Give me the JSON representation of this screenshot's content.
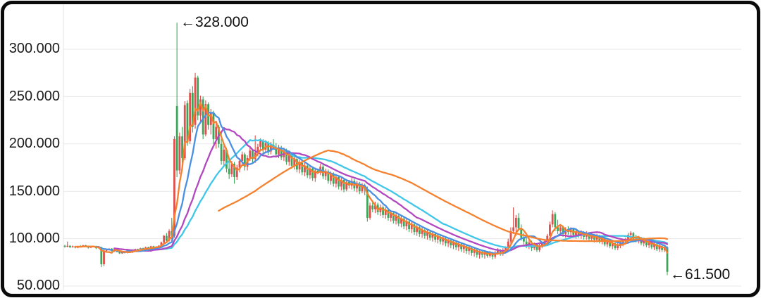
{
  "chart_data": {
    "type": "candlestick",
    "title": "",
    "convention": "red=up, green=down",
    "up_color": "#e04f4d",
    "down_color": "#3fa55b",
    "grid_color": "#e8e8e8",
    "axis_line_color": "#e3e3e3",
    "label_color": "#1b1b1b",
    "border_color": "#0b0b0b",
    "background": "#ffffff",
    "x_axis": {
      "visible": false
    },
    "y_axis": {
      "tick_values": [
        300,
        250,
        200,
        150,
        100,
        50
      ],
      "tick_labels": [
        "300.000",
        "250.000",
        "200.000",
        "150.000",
        "100.000",
        "50.000"
      ],
      "ylim": [
        45,
        345
      ],
      "grid": true
    },
    "annotations": [
      {
        "text": "←328.000",
        "value": 328.0,
        "candle_index": 43,
        "anchor": "high"
      },
      {
        "text": "←61.500",
        "value": 61.5,
        "candle_index": 231,
        "anchor": "low"
      }
    ],
    "ma_lines": [
      {
        "name": "MA30",
        "period": 30,
        "color": "#3fc6e8"
      },
      {
        "name": "MA20",
        "period": 20,
        "color": "#b148c0"
      },
      {
        "name": "MA10",
        "period": 10,
        "color": "#4a90e2"
      },
      {
        "name": "MA5",
        "period": 5,
        "color": "#f5812f"
      },
      {
        "name": "MA60",
        "period": 60,
        "color": "#f5812f"
      }
    ],
    "candles": [
      [
        92.5,
        93.5,
        90.5,
        91.5
      ],
      [
        91.5,
        97,
        91,
        92.5
      ],
      [
        92.5,
        93,
        90.2,
        91
      ],
      [
        91,
        92.8,
        90.5,
        92
      ],
      [
        92,
        92.5,
        89.8,
        90.5
      ],
      [
        90.5,
        92.5,
        90,
        92
      ],
      [
        92,
        93.2,
        91,
        91.5
      ],
      [
        91.5,
        93.5,
        91,
        93
      ],
      [
        93,
        93.5,
        91.5,
        92
      ],
      [
        92,
        92.5,
        89.5,
        90.5
      ],
      [
        90.5,
        92,
        90,
        91.5
      ],
      [
        91.5,
        92.3,
        90.8,
        92
      ],
      [
        92,
        92.5,
        89,
        90
      ],
      [
        90,
        92,
        89.5,
        91.5
      ],
      [
        91,
        91.5,
        70,
        73
      ],
      [
        73,
        89,
        71,
        87.5
      ],
      [
        87.5,
        89,
        86.5,
        88
      ],
      [
        88,
        89.8,
        87.5,
        89.5
      ],
      [
        89.5,
        90,
        86.5,
        87
      ],
      [
        87,
        89,
        86,
        88.5
      ],
      [
        88.5,
        89,
        85.5,
        86
      ],
      [
        86,
        87,
        84,
        84.5
      ],
      [
        84.5,
        87,
        84,
        86.5
      ],
      [
        86.5,
        87,
        84.5,
        85
      ],
      [
        85,
        87.5,
        84.5,
        87
      ],
      [
        87,
        87.5,
        85,
        85.5
      ],
      [
        85.5,
        88.5,
        85,
        88
      ],
      [
        88,
        89.5,
        87,
        89
      ],
      [
        89,
        89.5,
        87,
        87.5
      ],
      [
        87.5,
        90.5,
        87,
        90
      ],
      [
        90,
        90.5,
        88,
        88.5
      ],
      [
        88.5,
        91.5,
        88,
        91
      ],
      [
        91,
        91.5,
        89,
        89.5
      ],
      [
        89.5,
        92.5,
        89,
        92
      ],
      [
        92,
        92.5,
        90,
        90.5
      ],
      [
        90.5,
        92,
        90,
        91.5
      ],
      [
        91.5,
        93,
        91,
        92.5
      ],
      [
        92.5,
        97,
        91.5,
        96
      ],
      [
        96,
        104,
        95,
        103
      ],
      [
        103,
        106,
        96,
        98
      ],
      [
        98,
        110,
        97,
        108
      ],
      [
        108,
        122,
        98,
        103
      ],
      [
        103,
        208,
        101,
        205
      ],
      [
        240,
        328,
        165,
        172
      ],
      [
        172,
        212,
        168,
        208
      ],
      [
        208,
        218,
        180,
        185
      ],
      [
        185,
        245,
        183,
        241
      ],
      [
        243,
        246,
        198,
        203
      ],
      [
        203,
        258,
        200,
        254
      ],
      [
        254,
        261,
        212,
        218
      ],
      [
        220,
        275,
        216,
        270
      ],
      [
        270,
        272,
        225,
        230
      ],
      [
        230,
        251,
        222,
        247
      ],
      [
        247,
        250,
        205,
        210
      ],
      [
        210,
        246,
        208,
        242
      ],
      [
        242,
        244,
        215,
        220
      ],
      [
        220,
        237,
        210,
        233
      ],
      [
        233,
        235,
        200,
        205
      ],
      [
        205,
        222,
        195,
        218
      ],
      [
        218,
        220,
        196,
        200
      ],
      [
        200,
        212,
        178,
        182
      ],
      [
        182,
        198,
        176,
        194
      ],
      [
        194,
        196,
        170,
        174
      ],
      [
        174,
        186,
        163,
        168
      ],
      [
        168,
        182,
        165,
        179
      ],
      [
        179,
        181,
        158,
        165
      ],
      [
        165,
        178,
        162,
        175
      ],
      [
        175,
        185,
        170,
        182
      ],
      [
        182,
        192,
        178,
        189
      ],
      [
        189,
        191,
        172,
        176
      ],
      [
        176,
        188,
        172,
        185
      ],
      [
        185,
        196,
        182,
        193
      ],
      [
        193,
        195,
        180,
        184
      ],
      [
        184,
        209,
        180,
        191
      ],
      [
        191,
        200,
        187,
        197
      ],
      [
        197,
        206,
        192,
        203
      ],
      [
        203,
        205,
        190,
        194
      ],
      [
        194,
        204,
        190,
        201
      ],
      [
        201,
        203,
        188,
        192
      ],
      [
        192,
        202,
        189,
        199
      ],
      [
        199,
        205,
        194,
        196
      ],
      [
        196,
        201,
        186,
        189
      ],
      [
        189,
        199,
        185,
        196
      ],
      [
        196,
        198,
        183,
        186
      ],
      [
        186,
        196,
        182,
        193
      ],
      [
        193,
        195,
        178,
        181
      ],
      [
        181,
        191,
        177,
        188
      ],
      [
        188,
        190,
        174,
        177
      ],
      [
        177,
        187,
        173,
        184
      ],
      [
        184,
        186,
        170,
        173
      ],
      [
        173,
        183,
        169,
        180
      ],
      [
        180,
        182,
        167,
        170
      ],
      [
        170,
        180,
        166,
        177
      ],
      [
        177,
        179,
        164,
        167
      ],
      [
        167,
        177,
        163,
        174
      ],
      [
        174,
        176,
        161,
        164
      ],
      [
        164,
        175,
        160,
        172
      ],
      [
        172,
        174,
        168,
        170
      ],
      [
        170,
        179,
        167,
        176
      ],
      [
        176,
        178,
        163,
        166
      ],
      [
        166,
        174,
        162,
        171
      ],
      [
        171,
        173,
        158,
        161
      ],
      [
        161,
        171,
        157,
        168
      ],
      [
        168,
        170,
        155,
        158
      ],
      [
        158,
        168,
        154,
        165
      ],
      [
        165,
        167,
        152,
        155
      ],
      [
        155,
        165,
        151,
        162
      ],
      [
        162,
        164,
        149,
        152
      ],
      [
        152,
        163,
        150,
        160
      ],
      [
        160,
        162,
        153,
        156
      ],
      [
        156,
        164,
        152,
        161
      ],
      [
        161,
        163,
        150,
        153
      ],
      [
        153,
        161,
        149,
        158
      ],
      [
        158,
        160,
        147,
        150
      ],
      [
        150,
        159,
        148,
        156
      ],
      [
        156,
        158,
        146,
        152
      ],
      [
        152,
        155,
        118,
        122
      ],
      [
        122,
        138,
        120,
        135
      ],
      [
        135,
        140,
        128,
        131
      ],
      [
        131,
        139,
        127,
        136
      ],
      [
        136,
        138,
        125,
        128
      ],
      [
        128,
        136,
        124,
        133
      ],
      [
        133,
        135,
        122,
        125
      ],
      [
        125,
        133,
        121,
        130
      ],
      [
        130,
        132,
        119,
        122
      ],
      [
        122,
        130,
        118,
        127
      ],
      [
        127,
        129,
        116,
        119
      ],
      [
        119,
        127,
        115,
        124
      ],
      [
        124,
        126,
        113,
        116
      ],
      [
        116,
        124,
        112,
        121
      ],
      [
        121,
        123,
        110,
        113
      ],
      [
        113,
        121,
        109,
        118
      ],
      [
        118,
        120,
        107,
        110
      ],
      [
        110,
        118,
        106,
        115
      ],
      [
        115,
        117,
        104,
        107
      ],
      [
        107,
        115,
        103,
        112
      ],
      [
        112,
        114,
        102,
        105
      ],
      [
        105,
        112,
        101,
        109
      ],
      [
        109,
        111,
        100,
        103
      ],
      [
        103,
        110,
        99,
        107
      ],
      [
        107,
        109,
        98,
        101
      ],
      [
        101,
        108,
        97,
        105
      ],
      [
        105,
        107,
        96,
        99
      ],
      [
        99,
        105,
        95,
        102
      ],
      [
        102,
        104,
        94,
        97
      ],
      [
        97,
        103,
        93,
        100
      ],
      [
        100,
        102,
        92,
        95
      ],
      [
        95,
        101,
        91,
        98
      ],
      [
        98,
        100,
        90,
        93
      ],
      [
        93,
        99,
        89,
        96
      ],
      [
        96,
        98,
        88,
        91
      ],
      [
        91,
        97,
        87,
        94
      ],
      [
        94,
        96,
        86,
        89
      ],
      [
        89,
        95,
        85,
        92
      ],
      [
        92,
        94,
        84,
        87
      ],
      [
        87,
        93,
        83,
        90
      ],
      [
        90,
        92,
        82,
        85
      ],
      [
        85,
        91,
        81,
        88
      ],
      [
        88,
        90,
        80,
        83
      ],
      [
        83,
        89,
        79,
        86
      ],
      [
        86,
        88,
        80,
        83
      ],
      [
        83,
        88,
        79,
        86
      ],
      [
        86,
        87,
        80,
        82
      ],
      [
        82,
        87,
        80,
        85
      ],
      [
        85,
        86,
        78,
        81
      ],
      [
        81,
        87,
        79,
        85
      ],
      [
        85,
        90,
        83,
        88
      ],
      [
        88,
        89,
        82,
        84
      ],
      [
        84,
        90,
        82,
        88
      ],
      [
        88,
        92,
        85,
        90
      ],
      [
        90,
        100,
        88,
        97
      ],
      [
        97,
        112,
        95,
        108
      ],
      [
        108,
        133,
        105,
        112
      ],
      [
        112,
        125,
        103,
        122
      ],
      [
        122,
        127,
        108,
        111
      ],
      [
        111,
        115,
        98,
        101
      ],
      [
        101,
        106,
        94,
        97
      ],
      [
        97,
        102,
        90,
        93
      ],
      [
        93,
        99,
        89,
        96
      ],
      [
        96,
        98,
        87,
        90
      ],
      [
        90,
        96,
        88,
        94
      ],
      [
        94,
        95,
        86,
        88
      ],
      [
        88,
        95,
        86,
        93
      ],
      [
        93,
        97,
        90,
        95
      ],
      [
        95,
        99,
        92,
        97
      ],
      [
        97,
        105,
        95,
        103
      ],
      [
        103,
        118,
        101,
        115
      ],
      [
        115,
        130,
        112,
        126
      ],
      [
        126,
        128,
        108,
        112
      ],
      [
        112,
        120,
        105,
        108
      ],
      [
        108,
        115,
        103,
        112
      ],
      [
        112,
        114,
        102,
        105
      ],
      [
        105,
        112,
        101,
        109
      ],
      [
        109,
        113,
        104,
        107
      ],
      [
        107,
        112,
        103,
        110
      ],
      [
        110,
        111,
        102,
        104
      ],
      [
        104,
        110,
        100,
        107
      ],
      [
        107,
        109,
        101,
        103
      ],
      [
        103,
        109,
        100,
        106
      ],
      [
        106,
        108,
        99,
        102
      ],
      [
        102,
        108,
        99,
        105
      ],
      [
        105,
        107,
        98,
        100
      ],
      [
        100,
        106,
        97,
        103
      ],
      [
        103,
        105,
        96,
        99
      ],
      [
        99,
        105,
        96,
        102
      ],
      [
        102,
        104,
        95,
        98
      ],
      [
        98,
        103,
        94,
        100
      ],
      [
        100,
        101,
        92,
        94
      ],
      [
        94,
        100,
        91,
        97
      ],
      [
        97,
        98,
        90,
        92
      ],
      [
        92,
        98,
        89,
        95
      ],
      [
        95,
        96,
        88,
        90
      ],
      [
        90,
        96,
        88,
        93
      ],
      [
        93,
        97,
        90,
        95
      ],
      [
        95,
        99,
        92,
        97
      ],
      [
        97,
        101,
        94,
        99
      ],
      [
        99,
        106,
        96,
        104
      ],
      [
        104,
        108,
        100,
        106
      ],
      [
        106,
        107,
        98,
        100
      ],
      [
        100,
        104,
        96,
        98
      ],
      [
        98,
        103,
        95,
        101
      ],
      [
        101,
        102,
        93,
        95
      ],
      [
        95,
        101,
        92,
        98
      ],
      [
        98,
        99,
        91,
        93
      ],
      [
        93,
        99,
        90,
        96
      ],
      [
        96,
        97,
        89,
        91
      ],
      [
        91,
        97,
        88,
        94
      ],
      [
        94,
        95,
        87,
        89
      ],
      [
        89,
        95,
        86,
        92
      ],
      [
        92,
        93,
        86,
        88
      ],
      [
        88,
        94,
        86,
        91
      ],
      [
        91,
        92,
        61.5,
        65
      ]
    ]
  }
}
